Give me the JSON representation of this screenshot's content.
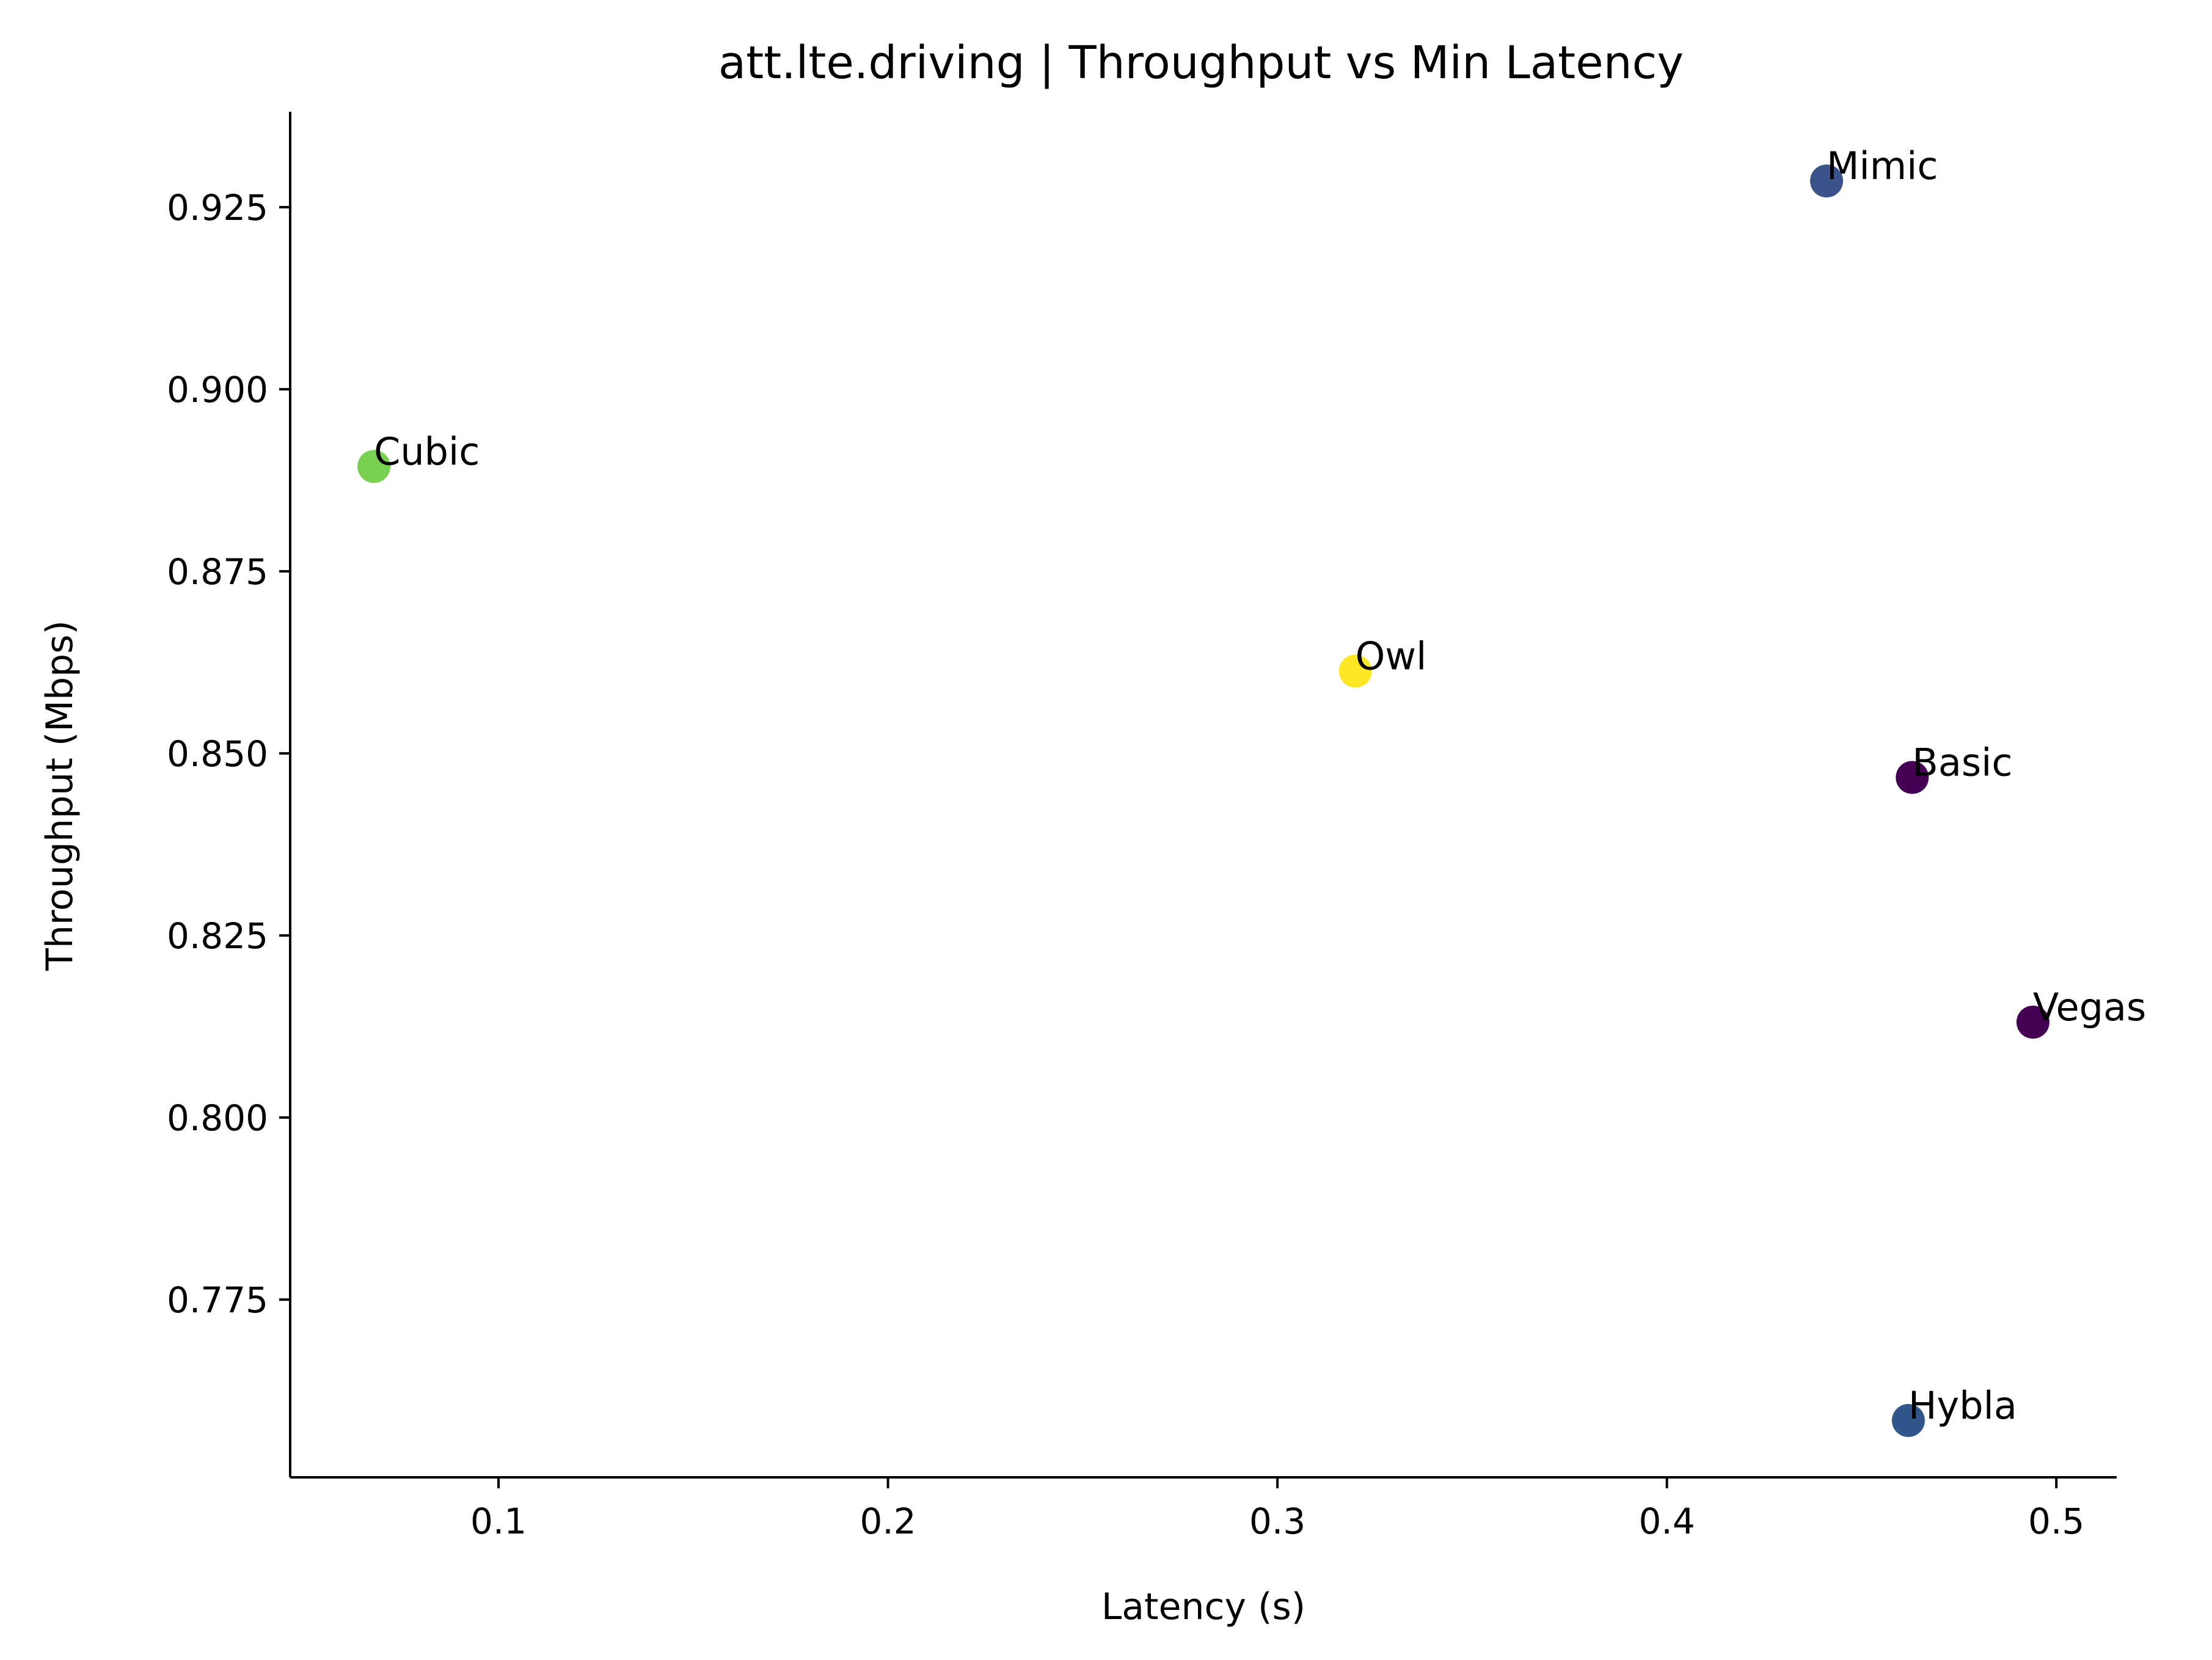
{
  "chart_data": {
    "type": "scatter",
    "title": "att.lte.driving | Throughput vs Min Latency",
    "xlabel": "Latency (s)",
    "ylabel": "Throughput (Mbps)",
    "xlim": [
      0.0465,
      0.5155
    ],
    "ylim": [
      0.7506,
      0.9381
    ],
    "xticks": [
      0.1,
      0.2,
      0.3,
      0.4,
      0.5
    ],
    "xtick_labels": [
      "0.1",
      "0.2",
      "0.3",
      "0.4",
      "0.5"
    ],
    "yticks": [
      0.775,
      0.8,
      0.825,
      0.85,
      0.875,
      0.9,
      0.925
    ],
    "ytick_labels": [
      "0.775",
      "0.800",
      "0.825",
      "0.850",
      "0.875",
      "0.900",
      "0.925"
    ],
    "grid": false,
    "points": [
      {
        "label": "Mimic",
        "x": 0.441,
        "y": 0.9286,
        "color": "#3b528b"
      },
      {
        "label": "Cubic",
        "x": 0.068,
        "y": 0.8894,
        "color": "#7ad151"
      },
      {
        "label": "Owl",
        "x": 0.32,
        "y": 0.8613,
        "color": "#fde725"
      },
      {
        "label": "Basic",
        "x": 0.463,
        "y": 0.8467,
        "color": "#440154"
      },
      {
        "label": "Vegas",
        "x": 0.494,
        "y": 0.8131,
        "color": "#440154"
      },
      {
        "label": "Hybla",
        "x": 0.462,
        "y": 0.7584,
        "color": "#31568c"
      }
    ]
  }
}
